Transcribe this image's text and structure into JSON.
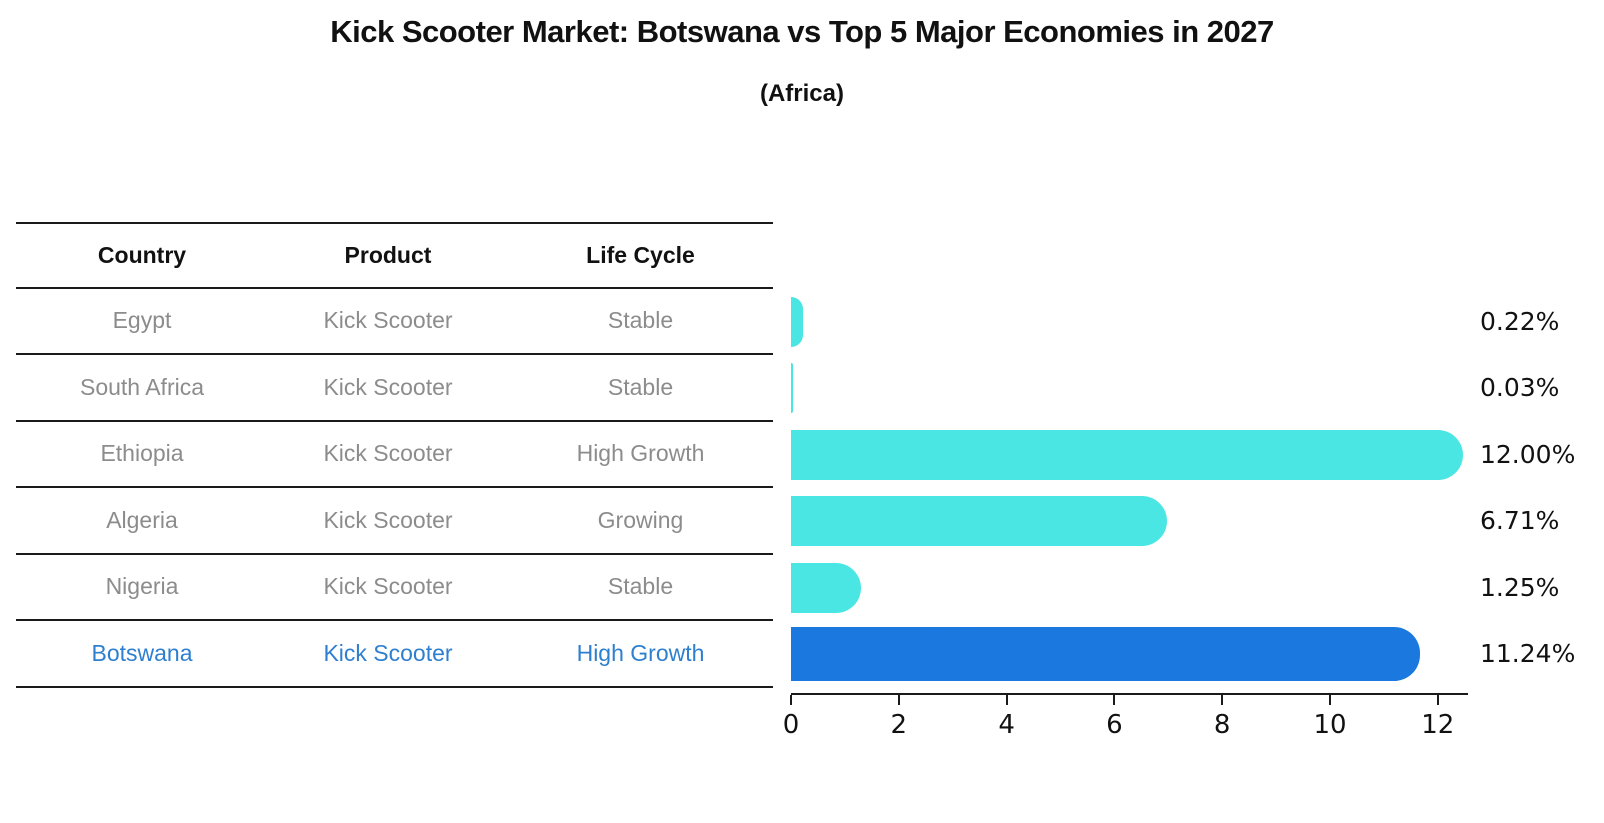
{
  "chart_data": {
    "type": "bar",
    "orientation": "horizontal",
    "title": "Kick Scooter Market: Botswana vs Top 5 Major Economies in 2027",
    "subtitle": "(Africa)",
    "columns": [
      "Country",
      "Product",
      "Life Cycle"
    ],
    "rows": [
      {
        "country": "Egypt",
        "product": "Kick Scooter",
        "life_cycle": "Stable",
        "value": 0.22,
        "value_label": "0.22%",
        "highlight": false
      },
      {
        "country": "South Africa",
        "product": "Kick Scooter",
        "life_cycle": "Stable",
        "value": 0.03,
        "value_label": "0.03%",
        "highlight": false
      },
      {
        "country": "Ethiopia",
        "product": "Kick Scooter",
        "life_cycle": "High Growth",
        "value": 12.0,
        "value_label": "12.00%",
        "highlight": false
      },
      {
        "country": "Algeria",
        "product": "Kick Scooter",
        "life_cycle": "Growing",
        "value": 6.71,
        "value_label": "6.71%",
        "highlight": false
      },
      {
        "country": "Nigeria",
        "product": "Kick Scooter",
        "life_cycle": "Stable",
        "value": 1.25,
        "value_label": "1.25%",
        "highlight": false
      },
      {
        "country": "Botswana",
        "product": "Kick Scooter",
        "life_cycle": "High Growth",
        "value": 11.24,
        "value_label": "11.24%",
        "highlight": true
      }
    ],
    "x_ticks": [
      0,
      2,
      4,
      6,
      8,
      10,
      12
    ],
    "xlim": [
      0,
      12.55
    ],
    "grid": false,
    "legend": "none",
    "colors": {
      "bar": "#4AE6E4",
      "highlight_bar": "#1A78DF",
      "highlight_text": "#2E7FD0",
      "row_text": "#8C8C8C",
      "header_text": "#111111",
      "axis": "#1A1A1A"
    }
  }
}
